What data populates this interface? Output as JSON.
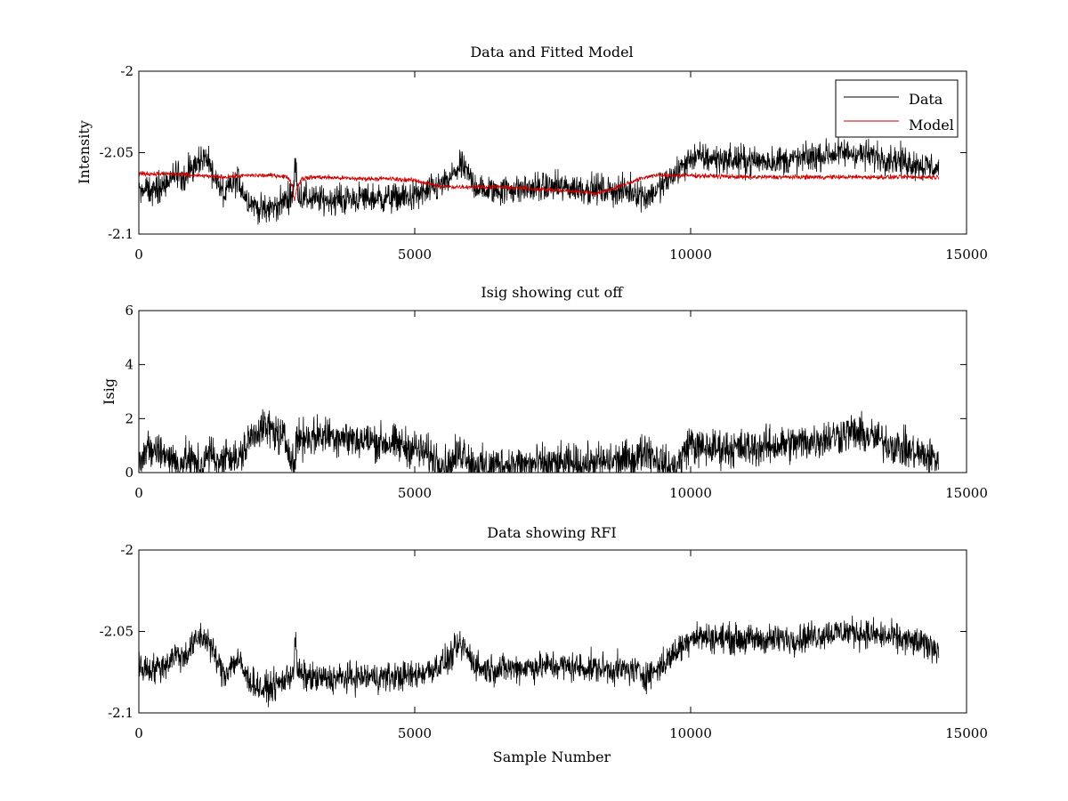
{
  "figure": {
    "background": "#ffffff",
    "axis_color": "#000000"
  },
  "chart_data": [
    {
      "type": "line",
      "title": "Data and Fitted Model",
      "xlabel": "",
      "ylabel": "Intensity",
      "xlim": [
        0,
        15000
      ],
      "ylim": [
        -2.1,
        -2.0
      ],
      "xticks": [
        0,
        5000,
        10000,
        15000
      ],
      "xtick_labels": [
        "0",
        "5000",
        "10000",
        "15000"
      ],
      "yticks": [
        -2.1,
        -2.05,
        -2.0
      ],
      "ytick_labels": [
        "-2.1",
        "-2.05",
        "-2"
      ],
      "grid": false,
      "legend": {
        "position": "top-right",
        "entries": [
          "Data",
          "Model"
        ]
      },
      "series": [
        {
          "name": "Data",
          "color": "#000000",
          "noise": 0.0045,
          "x": [
            0,
            300,
            500,
            650,
            800,
            950,
            1100,
            1250,
            1400,
            1550,
            1650,
            1800,
            1950,
            2100,
            2250,
            2400,
            2550,
            2700,
            2800,
            2840,
            2870,
            2950,
            3200,
            3500,
            4000,
            4500,
            5000,
            5300,
            5600,
            5800,
            5900,
            6050,
            6200,
            6500,
            7000,
            7500,
            8000,
            8500,
            9000,
            9200,
            9400,
            9600,
            9800,
            9950,
            10000,
            10100,
            10500,
            11000,
            11500,
            12000,
            12500,
            12900,
            13300,
            13700,
            14100,
            14500
          ],
          "y": [
            -2.072,
            -2.073,
            -2.07,
            -2.064,
            -2.066,
            -2.06,
            -2.053,
            -2.055,
            -2.067,
            -2.077,
            -2.071,
            -2.067,
            -2.078,
            -2.082,
            -2.086,
            -2.084,
            -2.082,
            -2.078,
            -2.074,
            -2.055,
            -2.073,
            -2.077,
            -2.079,
            -2.079,
            -2.078,
            -2.078,
            -2.077,
            -2.073,
            -2.068,
            -2.059,
            -2.06,
            -2.068,
            -2.073,
            -2.073,
            -2.072,
            -2.071,
            -2.072,
            -2.073,
            -2.074,
            -2.077,
            -2.073,
            -2.067,
            -2.06,
            -2.056,
            -2.052,
            -2.053,
            -2.054,
            -2.055,
            -2.055,
            -2.054,
            -2.051,
            -2.05,
            -2.052,
            -2.054,
            -2.057,
            -2.06
          ]
        },
        {
          "name": "Model",
          "color": "#cc0000",
          "noise": 0.0007,
          "x": [
            0,
            500,
            1000,
            1500,
            2000,
            2500,
            2700,
            2780,
            2820,
            2860,
            2950,
            3200,
            4000,
            4500,
            5000,
            5500,
            6500,
            7000,
            7500,
            8000,
            8300,
            8600,
            9000,
            9300,
            9600,
            10000,
            11000,
            12000,
            13000,
            14500
          ],
          "y": [
            -2.063,
            -2.063,
            -2.064,
            -2.065,
            -2.064,
            -2.064,
            -2.065,
            -2.07,
            -2.08,
            -2.072,
            -2.066,
            -2.065,
            -2.066,
            -2.066,
            -2.067,
            -2.071,
            -2.071,
            -2.072,
            -2.073,
            -2.074,
            -2.075,
            -2.072,
            -2.067,
            -2.064,
            -2.064,
            -2.064,
            -2.065,
            -2.065,
            -2.065,
            -2.065
          ]
        }
      ]
    },
    {
      "type": "line",
      "title": "Isig showing cut off",
      "xlabel": "",
      "ylabel": "Isig",
      "xlim": [
        0,
        15000
      ],
      "ylim": [
        0,
        6
      ],
      "xticks": [
        0,
        5000,
        10000,
        15000
      ],
      "xtick_labels": [
        "0",
        "5000",
        "10000",
        "15000"
      ],
      "yticks": [
        0,
        2,
        4,
        6
      ],
      "ytick_labels": [
        "0",
        "2",
        "4",
        "6"
      ],
      "grid": false,
      "series": [
        {
          "color": "#000000",
          "noise": 0.35,
          "floor": 0,
          "x": [
            0,
            300,
            500,
            700,
            900,
            1100,
            1300,
            1500,
            1600,
            1800,
            2000,
            2200,
            2400,
            2600,
            2750,
            2820,
            2860,
            2900,
            3000,
            3500,
            4000,
            4500,
            5000,
            5400,
            5600,
            5800,
            5900,
            6050,
            6300,
            6500,
            7000,
            7500,
            8000,
            8500,
            9000,
            9200,
            9400,
            9600,
            9800,
            10000,
            10100,
            10500,
            11000,
            11500,
            12000,
            12500,
            12900,
            13300,
            13700,
            14100,
            14500
          ],
          "y": [
            0.7,
            0.8,
            0.7,
            0.3,
            0.5,
            0.2,
            0.7,
            0.3,
            0.8,
            0.4,
            1.2,
            1.7,
            1.6,
            1.3,
            0.8,
            0.1,
            1.2,
            1.3,
            1.3,
            1.4,
            1.2,
            1.1,
            0.9,
            0.5,
            0.2,
            0.7,
            0.8,
            0.3,
            0.2,
            0.3,
            0.3,
            0.3,
            0.3,
            0.4,
            0.5,
            0.9,
            0.5,
            0.1,
            0.4,
            1.2,
            0.9,
            0.9,
            0.9,
            1.0,
            1.1,
            1.3,
            1.5,
            1.3,
            1.0,
            0.7,
            0.5
          ]
        }
      ]
    },
    {
      "type": "line",
      "title": "Data showing RFI",
      "xlabel": "Sample Number",
      "ylabel": "",
      "xlim": [
        0,
        15000
      ],
      "ylim": [
        -2.1,
        -2.0
      ],
      "xticks": [
        0,
        5000,
        10000,
        15000
      ],
      "xtick_labels": [
        "0",
        "5000",
        "10000",
        "15000"
      ],
      "yticks": [
        -2.1,
        -2.05,
        -2.0
      ],
      "ytick_labels": [
        "-2.1",
        "-2.05",
        "-2"
      ],
      "grid": false,
      "series": [
        {
          "color": "#000000",
          "noise": 0.0045,
          "x": [
            0,
            300,
            500,
            650,
            800,
            950,
            1100,
            1250,
            1400,
            1550,
            1650,
            1800,
            1950,
            2100,
            2250,
            2400,
            2550,
            2700,
            2800,
            2840,
            2870,
            2950,
            3200,
            3500,
            4000,
            4500,
            5000,
            5300,
            5600,
            5800,
            5900,
            6050,
            6200,
            6500,
            7000,
            7500,
            8000,
            8500,
            9000,
            9200,
            9400,
            9600,
            9800,
            9950,
            10000,
            10100,
            10500,
            11000,
            11500,
            12000,
            12500,
            12900,
            13300,
            13700,
            14100,
            14500
          ],
          "y": [
            -2.072,
            -2.073,
            -2.07,
            -2.064,
            -2.066,
            -2.06,
            -2.053,
            -2.055,
            -2.067,
            -2.077,
            -2.071,
            -2.067,
            -2.078,
            -2.082,
            -2.086,
            -2.084,
            -2.082,
            -2.078,
            -2.074,
            -2.055,
            -2.073,
            -2.077,
            -2.079,
            -2.079,
            -2.078,
            -2.078,
            -2.077,
            -2.073,
            -2.068,
            -2.059,
            -2.06,
            -2.068,
            -2.073,
            -2.073,
            -2.072,
            -2.071,
            -2.072,
            -2.073,
            -2.074,
            -2.077,
            -2.073,
            -2.067,
            -2.06,
            -2.056,
            -2.052,
            -2.053,
            -2.054,
            -2.055,
            -2.055,
            -2.054,
            -2.051,
            -2.05,
            -2.052,
            -2.054,
            -2.057,
            -2.06
          ]
        }
      ]
    }
  ]
}
